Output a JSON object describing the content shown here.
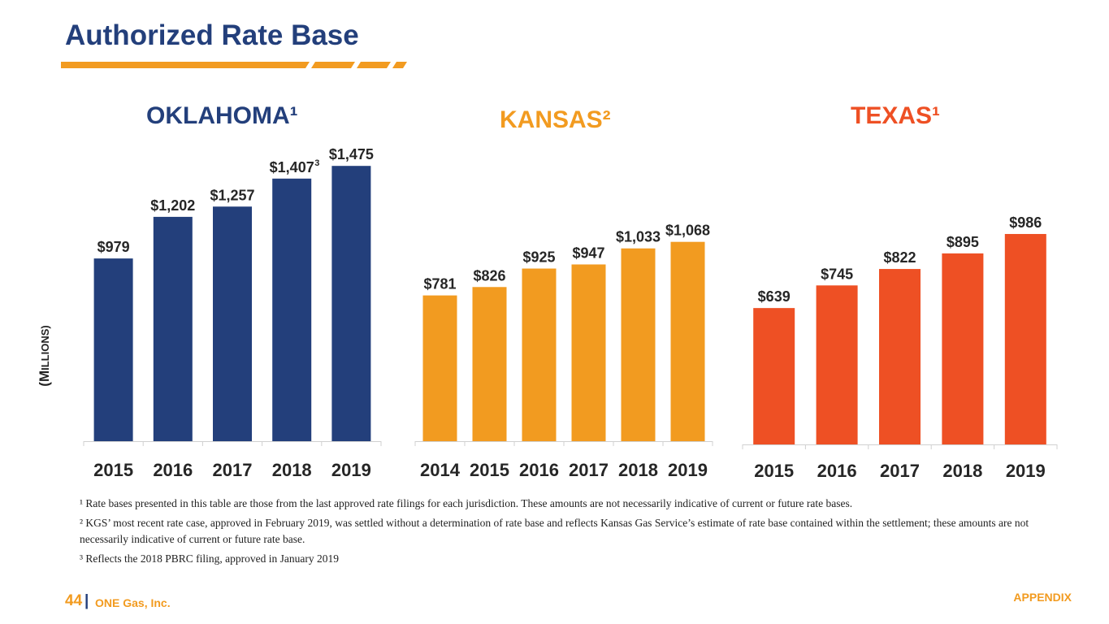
{
  "page": {
    "title": "Authorized Rate Base",
    "y_axis_label_first": "(M",
    "y_axis_label_rest": "ILLIONS)",
    "page_number": "44",
    "separator": "|",
    "company": "ONE Gas, Inc.",
    "section": "APPENDIX"
  },
  "footnotes": [
    "¹ Rate bases presented in this table are those from the last approved rate filings for each jurisdiction. These amounts are not necessarily indicative of current or future rate bases.",
    "² KGS’ most recent rate case, approved in February 2019, was settled without a determination of rate base and reflects Kansas Gas Service’s estimate of rate base contained within the settlement; these amounts are not necessarily indicative of current or future rate base.",
    "³ Reflects the 2018 PBRC filing, approved in January 2019"
  ],
  "colors": {
    "title": "#233f7b",
    "accent": "#f29b20",
    "oklahoma": "#233f7b",
    "kansas": "#f29b20",
    "texas": "#ee5024"
  },
  "chart_data": [
    {
      "type": "bar",
      "title": "OKLAHOMA¹",
      "color": "#233f7b",
      "categories": [
        "2015",
        "2016",
        "2017",
        "2018",
        "2019"
      ],
      "values": [
        979,
        1202,
        1257,
        1407,
        1475
      ],
      "value_labels": [
        "$979",
        "$1,202",
        "$1,257",
        "$1,407",
        "$1,475"
      ],
      "label_superscripts": [
        "",
        "",
        "",
        "3",
        ""
      ],
      "ylabel": "(Millions)",
      "ylim": [
        0,
        1600
      ]
    },
    {
      "type": "bar",
      "title": "KANSAS²",
      "color": "#f29b20",
      "categories": [
        "2014",
        "2015",
        "2016",
        "2017",
        "2018",
        "2019"
      ],
      "values": [
        781,
        826,
        925,
        947,
        1033,
        1068
      ],
      "value_labels": [
        "$781",
        "$826",
        "$925",
        "$947",
        "$1,033",
        "$1,068"
      ],
      "ylim": [
        0,
        1600
      ]
    },
    {
      "type": "bar",
      "title": "TEXAS¹",
      "color": "#ee5024",
      "categories": [
        "2015",
        "2016",
        "2017",
        "2018",
        "2019"
      ],
      "values": [
        639,
        745,
        822,
        895,
        986
      ],
      "value_labels": [
        "$639",
        "$745",
        "$822",
        "$895",
        "$986"
      ],
      "ylim": [
        0,
        1600
      ]
    }
  ]
}
